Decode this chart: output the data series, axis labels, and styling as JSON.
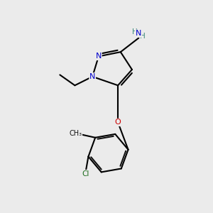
{
  "background_color": "#ebebeb",
  "N_color": "#0000cc",
  "O_color": "#cc0000",
  "Cl_color": "#1a6b1a",
  "C_color": "#111111",
  "H_color": "#3a8878",
  "lw": 1.5,
  "figsize": [
    3.0,
    3.0
  ],
  "dpi": 100,
  "xlim": [
    -1,
    11
  ],
  "ylim": [
    -0.5,
    10.5
  ]
}
